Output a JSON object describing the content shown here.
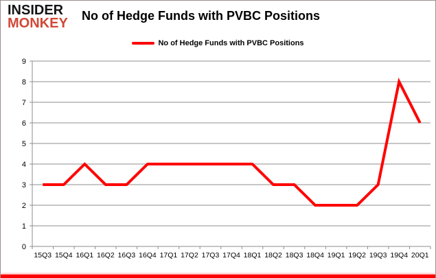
{
  "header": {
    "logo_line1": "INSIDER",
    "logo_line2": "MONKEY",
    "title": "No of Hedge Funds with PVBC Positions"
  },
  "legend": {
    "label": "No of Hedge Funds with PVBC Positions"
  },
  "colors": {
    "series": "#ff0000",
    "grid": "#8c8c8c",
    "axis": "#8c8c8c",
    "text": "#000000",
    "logo_top": "#141414",
    "logo_bottom": "#d14836",
    "frame_bottom": "#ff0000"
  },
  "chart_data": {
    "type": "line",
    "title": "No of Hedge Funds with PVBC Positions",
    "categories": [
      "15Q3",
      "15Q4",
      "16Q1",
      "16Q2",
      "16Q3",
      "16Q4",
      "17Q1",
      "17Q2",
      "17Q3",
      "17Q4",
      "18Q1",
      "18Q2",
      "18Q3",
      "18Q4",
      "19Q1",
      "19Q2",
      "19Q3",
      "19Q4",
      "20Q1"
    ],
    "series": [
      {
        "name": "No of Hedge Funds with PVBC Positions",
        "values": [
          3,
          3,
          4,
          3,
          3,
          4,
          4,
          4,
          4,
          4,
          4,
          3,
          3,
          2,
          2,
          2,
          3,
          8,
          6
        ]
      }
    ],
    "xlabel": "",
    "ylabel": "",
    "ylim": [
      0,
      9
    ],
    "ytick_step": 1,
    "grid": "horizontal",
    "legend_position": "top-center"
  }
}
